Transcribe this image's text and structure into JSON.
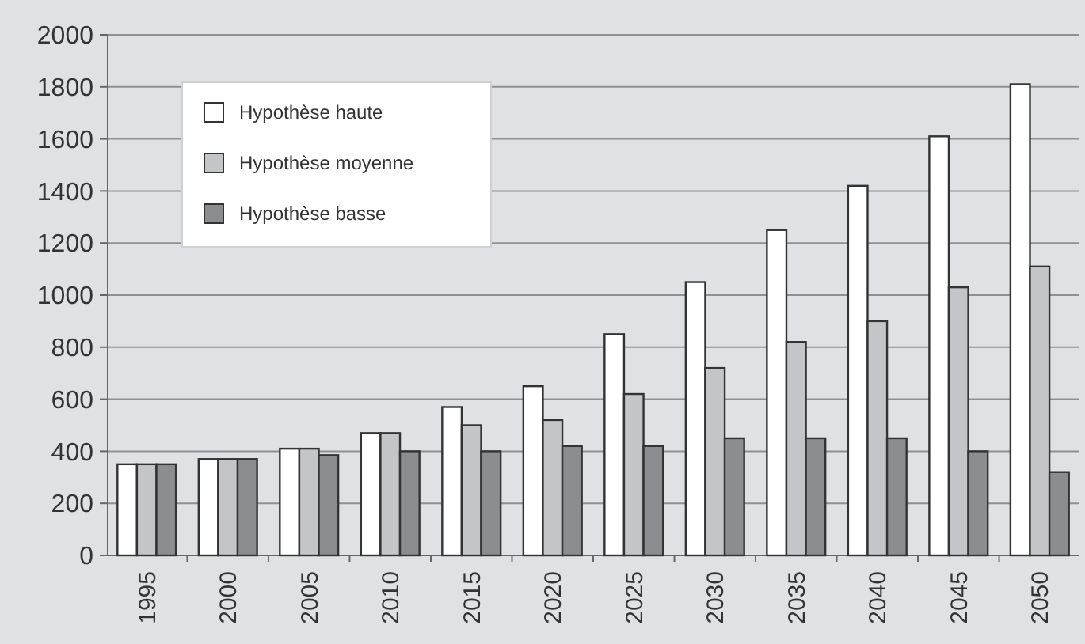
{
  "chart_data": {
    "type": "bar",
    "categories": [
      "1995",
      "2000",
      "2005",
      "2010",
      "2015",
      "2020",
      "2025",
      "2030",
      "2035",
      "2040",
      "2045",
      "2050"
    ],
    "series": [
      {
        "name": "Hypothèse haute",
        "color": "#ffffff",
        "values": [
          350,
          370,
          410,
          470,
          570,
          650,
          850,
          1050,
          1250,
          1420,
          1610,
          1810
        ]
      },
      {
        "name": "Hypothèse moyenne",
        "color": "#c3c5c8",
        "values": [
          350,
          370,
          410,
          470,
          500,
          520,
          620,
          720,
          820,
          900,
          1030,
          1110
        ]
      },
      {
        "name": "Hypothèse basse",
        "color": "#8b8d90",
        "values": [
          350,
          370,
          385,
          400,
          400,
          420,
          420,
          450,
          450,
          450,
          400,
          320
        ]
      }
    ],
    "ylim": [
      0,
      2000
    ],
    "yticks": [
      0,
      200,
      400,
      600,
      800,
      1000,
      1200,
      1400,
      1600,
      1800,
      2000
    ],
    "grid": "y",
    "legend": "top left"
  }
}
